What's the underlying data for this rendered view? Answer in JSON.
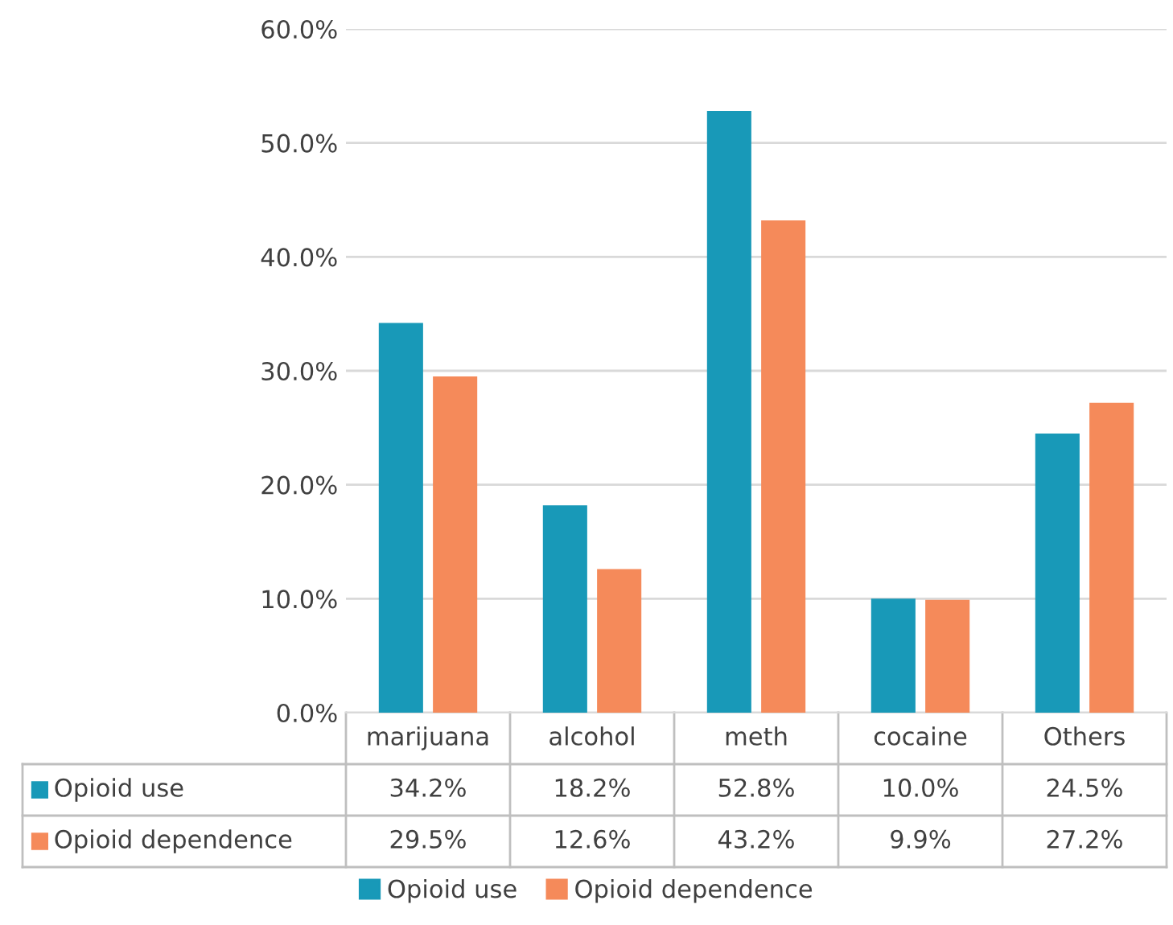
{
  "chart_data": {
    "type": "bar",
    "categories": [
      "marijuana",
      "alcohol",
      "meth",
      "cocaine",
      "Others"
    ],
    "series": [
      {
        "name": "Opioid use",
        "color": "#1899b8",
        "values": [
          34.2,
          18.2,
          52.8,
          10.0,
          24.5
        ],
        "value_labels": [
          "34.2%",
          "18.2%",
          "52.8%",
          "10.0%",
          "24.5%"
        ]
      },
      {
        "name": "Opioid dependence",
        "color": "#f58a5a",
        "values": [
          29.5,
          12.6,
          43.2,
          9.9,
          27.2
        ],
        "value_labels": [
          "29.5%",
          "12.6%",
          "43.2%",
          "9.9%",
          "27.2%"
        ]
      }
    ],
    "ylim": [
      0,
      60
    ],
    "yticks": [
      {
        "value": 0,
        "label": "0.0%"
      },
      {
        "value": 10,
        "label": "10.0%"
      },
      {
        "value": 20,
        "label": "20.0%"
      },
      {
        "value": 30,
        "label": "30.0%"
      },
      {
        "value": 40,
        "label": "40.0%"
      },
      {
        "value": 50,
        "label": "50.0%"
      },
      {
        "value": 60,
        "label": "60.0%"
      }
    ],
    "grid": "y",
    "legend": "bottom"
  }
}
